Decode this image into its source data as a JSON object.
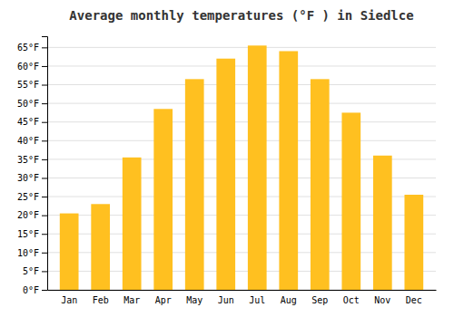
{
  "chart_data": {
    "type": "bar",
    "title": "Average monthly temperatures (°F ) in Siedlce",
    "categories": [
      "Jan",
      "Feb",
      "Mar",
      "Apr",
      "May",
      "Jun",
      "Jul",
      "Aug",
      "Sep",
      "Oct",
      "Nov",
      "Dec"
    ],
    "values": [
      20.5,
      23.0,
      35.5,
      48.5,
      56.5,
      62.0,
      65.5,
      64.0,
      56.5,
      47.5,
      36.0,
      25.5
    ],
    "color": "#FFC020",
    "ylim": [
      0,
      68
    ],
    "yticks": [
      {
        "value": 0,
        "label": "0°F"
      },
      {
        "value": 5,
        "label": "5°F"
      },
      {
        "value": 10,
        "label": "10°F"
      },
      {
        "value": 15,
        "label": "15°F"
      },
      {
        "value": 20,
        "label": "20°F"
      },
      {
        "value": 25,
        "label": "25°F"
      },
      {
        "value": 30,
        "label": "30°F"
      },
      {
        "value": 35,
        "label": "35°F"
      },
      {
        "value": 40,
        "label": "40°F"
      },
      {
        "value": 45,
        "label": "45°F"
      },
      {
        "value": 50,
        "label": "50°F"
      },
      {
        "value": 55,
        "label": "55°F"
      },
      {
        "value": 60,
        "label": "60°F"
      },
      {
        "value": 65,
        "label": "65°F"
      }
    ],
    "grid": true
  }
}
